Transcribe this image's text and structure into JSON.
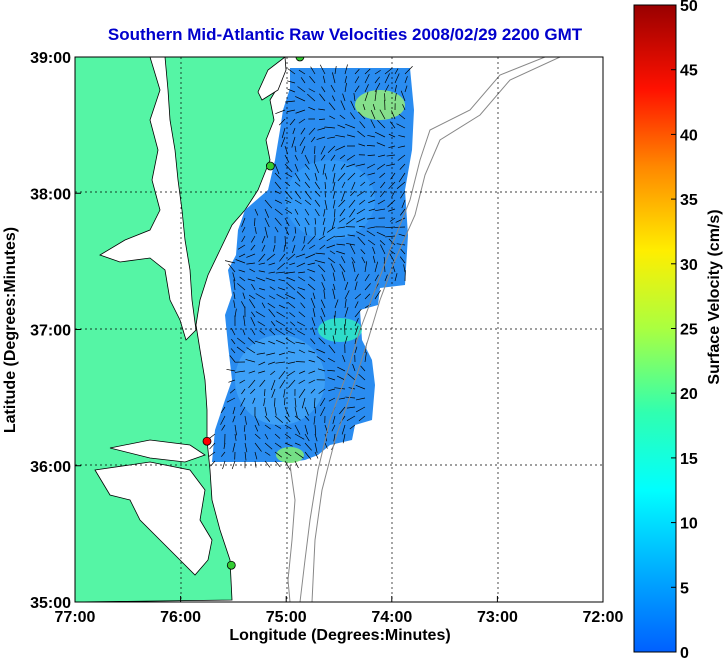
{
  "chart_data": {
    "type": "heatmap",
    "title": "Southern Mid-Atlantic Raw Velocities 2008/02/29 2200 GMT",
    "xlabel": "Longitude (Degrees:Minutes)",
    "ylabel": "Latitude (Degrees:Minutes)",
    "x_ticks": [
      "77:00",
      "76:00",
      "75:00",
      "74:00",
      "73:00",
      "72:00"
    ],
    "y_ticks": [
      "39:00",
      "38:00",
      "37:00",
      "36:00",
      "35:00"
    ],
    "xlim": [
      -77,
      -72
    ],
    "ylim": [
      35,
      39
    ],
    "grid": true,
    "colorbar": {
      "label": "Surface Velocity (cm/s)",
      "range": [
        0,
        50
      ],
      "ticks": [
        "50",
        "45",
        "40",
        "35",
        "30",
        "25",
        "20",
        "15",
        "10",
        "5",
        "0"
      ]
    },
    "velocity_range_shown": [
      0,
      18
    ],
    "stations": [
      {
        "color": "#33cc33",
        "lon": -74.87,
        "lat": 39.0
      },
      {
        "color": "#33cc33",
        "lon": -75.15,
        "lat": 38.2
      },
      {
        "color": "#ff0000",
        "lon": -75.75,
        "lat": 36.18
      },
      {
        "color": "#33cc33",
        "lon": -75.52,
        "lat": 35.27
      }
    ],
    "land_color": "#55f5a5",
    "coast_line_color": "#000000",
    "bathymetry_color": "#888888"
  }
}
